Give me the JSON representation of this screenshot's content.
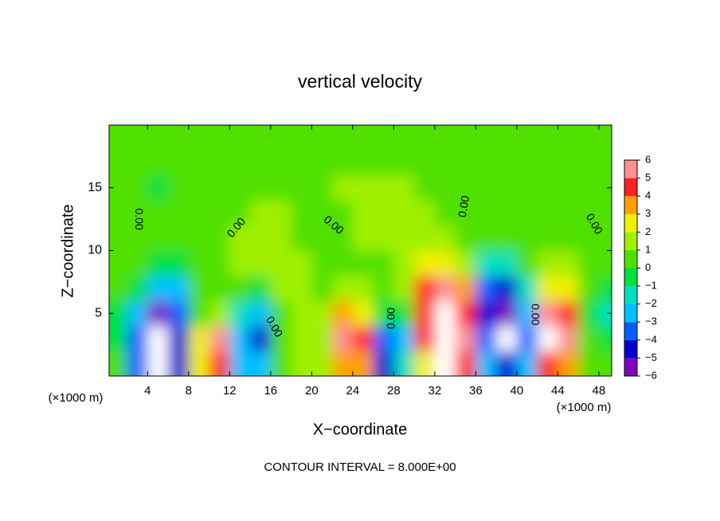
{
  "chart_data": {
    "type": "contour",
    "title": "vertical velocity",
    "x_label": "X−coordinate",
    "y_label": "Z−coordinate",
    "x_unit": "(×1000 m)",
    "footer": "CONTOUR INTERVAL = 8.000E+00",
    "xlim": [
      0.25,
      49.25
    ],
    "ylim": [
      0,
      20
    ],
    "xticks": [
      4,
      8,
      12,
      16,
      20,
      24,
      28,
      32,
      36,
      40,
      44,
      48
    ],
    "yticks": [
      5,
      10,
      15
    ],
    "field": {
      "x": [
        1,
        3,
        5,
        7,
        9,
        11,
        13,
        15,
        17,
        19,
        21,
        23,
        25,
        27,
        29,
        31,
        33,
        35,
        37,
        39,
        41,
        43,
        45,
        47,
        49
      ],
      "z": [
        1,
        3,
        5,
        7,
        9,
        11,
        13,
        15,
        17,
        19
      ],
      "values": [
        [
          0,
          -4,
          -7,
          -5,
          2,
          4,
          -3,
          -3,
          0,
          1,
          1,
          3,
          3,
          -5,
          -2,
          2,
          8,
          4,
          -3,
          -5,
          -3,
          4,
          3,
          0,
          0
        ],
        [
          -1,
          -4,
          -7,
          -5,
          2,
          5,
          -3,
          -5,
          0,
          1,
          1,
          5,
          4,
          -4,
          -3,
          4,
          8,
          5,
          -4,
          -7,
          -4,
          7,
          5,
          0,
          -1
        ],
        [
          -1,
          -3,
          -6,
          -4,
          0,
          1,
          -2,
          -3,
          0,
          1,
          1,
          3,
          2,
          -1,
          -1,
          4,
          7,
          4,
          -5,
          -6,
          -3,
          5,
          4,
          -1,
          -2
        ],
        [
          0,
          -1,
          -3,
          -3,
          0,
          0,
          0,
          -1,
          1,
          1,
          0,
          1,
          1,
          0,
          1,
          4,
          5,
          3,
          -4,
          -5,
          -2,
          2,
          2,
          0,
          -1
        ],
        [
          0,
          0,
          -1,
          -1,
          0,
          0,
          1,
          1,
          1,
          1,
          0,
          0,
          0,
          0,
          1,
          2,
          2,
          1,
          -2,
          -2,
          0,
          1,
          1,
          0,
          0
        ],
        [
          0,
          0,
          0,
          0,
          0,
          0,
          1,
          1,
          1,
          0,
          0,
          0,
          1,
          1,
          1,
          1,
          1,
          0,
          0,
          0,
          0,
          0,
          0,
          0,
          0
        ],
        [
          0,
          0,
          0,
          0,
          0,
          0,
          0,
          1,
          1,
          0,
          0,
          0,
          1,
          1,
          1,
          1,
          0,
          0,
          0,
          0,
          0,
          0,
          0,
          0,
          0
        ],
        [
          0,
          0,
          -1,
          0,
          0,
          0,
          0,
          0,
          0,
          0,
          0,
          1,
          1,
          1,
          1,
          0,
          0,
          0,
          0,
          0,
          0,
          0,
          0,
          0,
          0
        ],
        [
          0,
          0,
          0,
          0,
          0,
          0,
          0,
          0,
          0,
          0,
          0,
          0,
          0,
          0,
          0,
          0,
          0,
          0,
          0,
          0,
          0,
          0,
          0,
          0,
          0
        ],
        [
          0,
          0,
          0,
          0,
          0,
          0,
          0,
          0,
          0,
          0,
          0,
          0,
          0,
          0,
          0,
          0,
          0,
          0,
          0,
          0,
          0,
          0,
          0,
          0,
          0
        ]
      ]
    },
    "colorbar": {
      "levels": [
        {
          "value": -6,
          "label": "−6"
        },
        {
          "value": -5,
          "label": "−5"
        },
        {
          "value": -4,
          "label": "−4"
        },
        {
          "value": -3,
          "label": "−3"
        },
        {
          "value": -2,
          "label": "−2"
        },
        {
          "value": -1,
          "label": "−1"
        },
        0,
        1,
        2,
        3,
        4,
        5,
        6
      ],
      "colors": [
        "#8000c0",
        "#0000d0",
        "#0060ff",
        "#00c0ff",
        "#00e0c0",
        "#00e040",
        "#50e000",
        "#a0f000",
        "#f0f000",
        "#ffa000",
        "#ff2020",
        "#ff9090"
      ],
      "out_of_range_color": "#ffffff"
    },
    "contour_labels": [
      {
        "x": 3.1,
        "z": 12.5,
        "label": "0.00"
      },
      {
        "x": 12.7,
        "z": 11.8,
        "label": "0.00"
      },
      {
        "x": 16.3,
        "z": 3.9,
        "label": "0.00"
      },
      {
        "x": 22.1,
        "z": 12,
        "label": "0.00"
      },
      {
        "x": 27.8,
        "z": 4.6,
        "label": "0.00"
      },
      {
        "x": 34.9,
        "z": 13.5,
        "label": "0.00"
      },
      {
        "x": 41.75,
        "z": 4.9,
        "label": "0.00"
      },
      {
        "x": 47.5,
        "z": 12.1,
        "label": "0.00"
      }
    ]
  }
}
